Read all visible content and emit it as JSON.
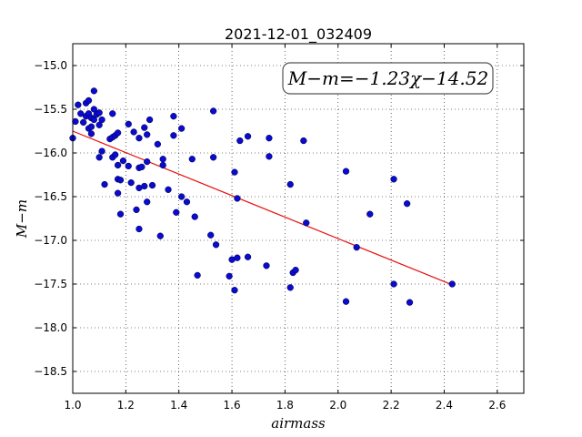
{
  "chart_data": {
    "type": "scatter",
    "title": "2021-12-01_032409",
    "xlabel": "airmass",
    "ylabel": "M−m",
    "xlim": [
      1.0,
      2.7
    ],
    "ylim": [
      -18.75,
      -14.75
    ],
    "x_ticks": [
      "1.0",
      "1.2",
      "1.4",
      "1.6",
      "1.8",
      "2.0",
      "2.2",
      "2.4",
      "2.6"
    ],
    "x_tick_values": [
      1.0,
      1.2,
      1.4,
      1.6,
      1.8,
      2.0,
      2.2,
      2.4,
      2.6
    ],
    "y_ticks": [
      "−15.0",
      "−15.5",
      "−16.0",
      "−16.5",
      "−17.0",
      "−17.5",
      "−18.0",
      "−18.5"
    ],
    "y_tick_values": [
      -15.0,
      -15.5,
      -16.0,
      -16.5,
      -17.0,
      -17.5,
      -18.0,
      -18.5
    ],
    "grid": true,
    "annotation": "M−m=−1.23χ−14.52",
    "fit": {
      "slope": -1.23,
      "intercept": -14.52,
      "x_range": [
        1.0,
        2.43
      ],
      "color": "#e8110f"
    },
    "point_color": "#0a0ad0",
    "points": [
      [
        1.0,
        -15.83
      ],
      [
        1.01,
        -15.64
      ],
      [
        1.02,
        -15.45
      ],
      [
        1.03,
        -15.55
      ],
      [
        1.04,
        -15.65
      ],
      [
        1.05,
        -15.58
      ],
      [
        1.05,
        -15.43
      ],
      [
        1.06,
        -15.4
      ],
      [
        1.06,
        -15.55
      ],
      [
        1.06,
        -15.72
      ],
      [
        1.07,
        -15.6
      ],
      [
        1.07,
        -15.7
      ],
      [
        1.07,
        -15.78
      ],
      [
        1.08,
        -15.29
      ],
      [
        1.08,
        -15.5
      ],
      [
        1.08,
        -15.62
      ],
      [
        1.09,
        -15.56
      ],
      [
        1.1,
        -15.54
      ],
      [
        1.1,
        -15.68
      ],
      [
        1.1,
        -16.05
      ],
      [
        1.11,
        -15.62
      ],
      [
        1.11,
        -15.98
      ],
      [
        1.12,
        -16.36
      ],
      [
        1.14,
        -15.84
      ],
      [
        1.15,
        -15.55
      ],
      [
        1.15,
        -15.82
      ],
      [
        1.15,
        -16.05
      ],
      [
        1.16,
        -15.8
      ],
      [
        1.16,
        -16.02
      ],
      [
        1.17,
        -15.77
      ],
      [
        1.17,
        -16.14
      ],
      [
        1.17,
        -16.3
      ],
      [
        1.17,
        -16.46
      ],
      [
        1.18,
        -16.31
      ],
      [
        1.18,
        -16.7
      ],
      [
        1.19,
        -16.09
      ],
      [
        1.21,
        -15.67
      ],
      [
        1.21,
        -16.15
      ],
      [
        1.22,
        -16.34
      ],
      [
        1.23,
        -15.76
      ],
      [
        1.24,
        -16.65
      ],
      [
        1.25,
        -15.83
      ],
      [
        1.25,
        -16.17
      ],
      [
        1.25,
        -16.4
      ],
      [
        1.25,
        -16.87
      ],
      [
        1.26,
        -16.16
      ],
      [
        1.27,
        -15.71
      ],
      [
        1.27,
        -16.38
      ],
      [
        1.28,
        -15.79
      ],
      [
        1.28,
        -16.1
      ],
      [
        1.28,
        -16.56
      ],
      [
        1.29,
        -15.62
      ],
      [
        1.3,
        -16.37
      ],
      [
        1.32,
        -15.9
      ],
      [
        1.33,
        -16.95
      ],
      [
        1.34,
        -16.07
      ],
      [
        1.34,
        -16.14
      ],
      [
        1.36,
        -16.42
      ],
      [
        1.38,
        -15.8
      ],
      [
        1.38,
        -15.58
      ],
      [
        1.39,
        -16.68
      ],
      [
        1.41,
        -15.72
      ],
      [
        1.41,
        -16.5
      ],
      [
        1.43,
        -16.56
      ],
      [
        1.45,
        -16.07
      ],
      [
        1.46,
        -16.73
      ],
      [
        1.47,
        -17.4
      ],
      [
        1.52,
        -16.94
      ],
      [
        1.53,
        -15.52
      ],
      [
        1.53,
        -16.05
      ],
      [
        1.54,
        -17.05
      ],
      [
        1.59,
        -17.41
      ],
      [
        1.6,
        -17.22
      ],
      [
        1.61,
        -17.57
      ],
      [
        1.61,
        -16.22
      ],
      [
        1.62,
        -16.52
      ],
      [
        1.62,
        -17.2
      ],
      [
        1.63,
        -15.86
      ],
      [
        1.66,
        -15.81
      ],
      [
        1.66,
        -17.19
      ],
      [
        1.73,
        -17.29
      ],
      [
        1.74,
        -15.83
      ],
      [
        1.74,
        -16.04
      ],
      [
        1.82,
        -17.54
      ],
      [
        1.82,
        -16.36
      ],
      [
        1.83,
        -17.37
      ],
      [
        1.84,
        -17.34
      ],
      [
        1.87,
        -15.86
      ],
      [
        1.88,
        -16.8
      ],
      [
        2.03,
        -16.21
      ],
      [
        2.03,
        -17.7
      ],
      [
        2.07,
        -17.08
      ],
      [
        2.12,
        -16.7
      ],
      [
        2.21,
        -16.3
      ],
      [
        2.21,
        -17.5
      ],
      [
        2.26,
        -16.58
      ],
      [
        2.27,
        -17.71
      ],
      [
        2.43,
        -17.5
      ]
    ]
  }
}
